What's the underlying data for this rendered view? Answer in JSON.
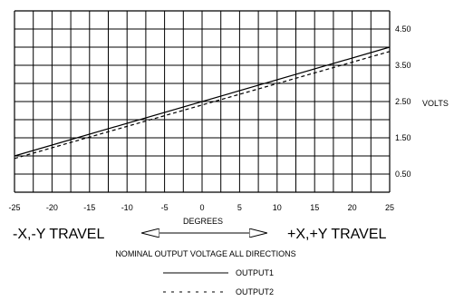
{
  "chart_data": {
    "type": "line",
    "title": "",
    "xlabel": "DEGREES",
    "ylabel": "VOLTS",
    "xlim": [
      -25,
      25
    ],
    "ylim": [
      0,
      5
    ],
    "x_ticks": [
      -25,
      -20,
      -15,
      -10,
      -5,
      0,
      5,
      10,
      15,
      20,
      25
    ],
    "x_tick_labels": [
      "-25",
      "-20",
      "-15",
      "-10",
      "-5",
      "0",
      "5",
      "10",
      "15",
      "20",
      "25"
    ],
    "y_ticks": [
      0.5,
      1.5,
      2.5,
      3.5,
      4.5
    ],
    "y_tick_labels": [
      "0.50",
      "1.50",
      "2.50",
      "3.50",
      "4.50"
    ],
    "grid": true,
    "legend_position": "bottom-center",
    "series": [
      {
        "name": "OUTPUT1",
        "style": "solid",
        "x": [
          -25,
          25
        ],
        "y": [
          1.0,
          4.0
        ]
      },
      {
        "name": "OUTPUT2",
        "style": "dashed",
        "x": [
          -25,
          25
        ],
        "y": [
          0.93,
          3.88
        ]
      }
    ],
    "annotations": {
      "left_travel": "-X,-Y TRAVEL",
      "right_travel": "+X,+Y TRAVEL",
      "caption": "NOMINAL OUTPUT VOLTAGE ALL DIRECTIONS"
    },
    "colors": {
      "line": "#000000",
      "grid": "#000000",
      "background": "#ffffff"
    }
  }
}
